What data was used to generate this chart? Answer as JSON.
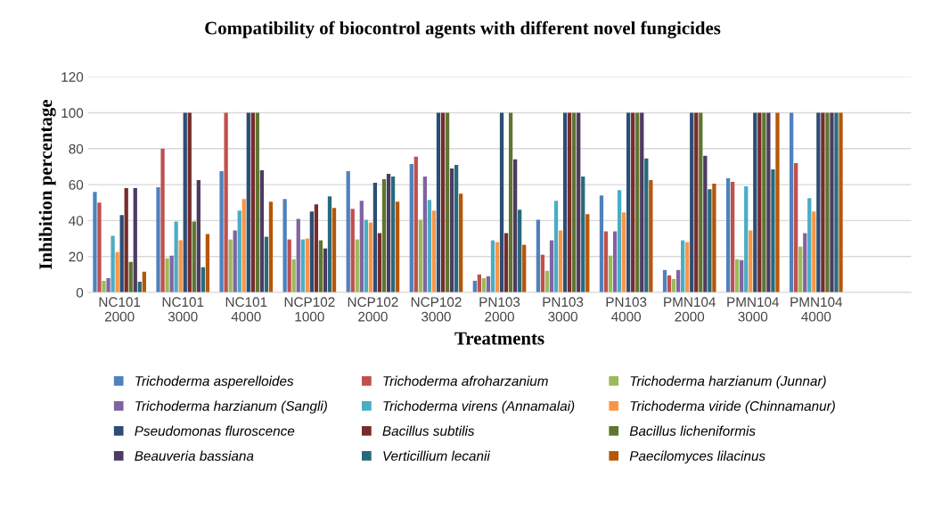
{
  "chart_data": {
    "type": "bar",
    "title": "Compatibility of biocontrol agents with different novel fungicides",
    "xlabel": "Treatments",
    "ylabel": "Inhibition percentage",
    "categories": [
      "NC101\n2000",
      "NC101\n3000",
      "NC101\n4000",
      "NCP102\n1000",
      "NCP102\n2000",
      "NCP102\n3000",
      "PN103\n2000",
      "PN103\n3000",
      "PN103\n4000",
      "PMN104\n2000",
      "PMN104\n3000",
      "PMN104\n4000",
      null
    ],
    "ylim": [
      0,
      120
    ],
    "yticks": [
      0,
      20,
      40,
      60,
      80,
      100,
      120
    ],
    "grid": "y",
    "legend": "bottom",
    "series": [
      {
        "name": "Trichoderma asperelloides",
        "color": "#4f81bd",
        "values": [
          56,
          58.5,
          67.5,
          52,
          67.5,
          71.5,
          6.5,
          40.5,
          54,
          12.5,
          63.5,
          100,
          null
        ]
      },
      {
        "name": "Trichoderma afroharzanium",
        "color": "#c0504d",
        "values": [
          50,
          80,
          100,
          29.5,
          46.5,
          75.5,
          10,
          21,
          34,
          9.5,
          61.5,
          72,
          null
        ]
      },
      {
        "name": "Trichoderma harzianum (Junnar)",
        "color": "#9bbb59",
        "values": [
          6.5,
          19,
          29.5,
          18.5,
          29.5,
          40.5,
          8,
          12,
          20.5,
          7.5,
          18.5,
          25.5,
          null
        ]
      },
      {
        "name": "Trichoderma harzianum (Sangli)",
        "color": "#8064a2",
        "values": [
          8,
          20.5,
          34.5,
          41,
          51,
          64.5,
          9,
          29,
          34,
          12.5,
          18,
          33,
          null
        ]
      },
      {
        "name": "Trichoderma virens (Annamalai)",
        "color": "#4bacc6",
        "values": [
          31.5,
          39.5,
          45.5,
          29.5,
          40.5,
          51.5,
          29,
          51,
          57,
          29,
          59,
          52.5,
          null
        ]
      },
      {
        "name": "Trichoderma viride (Chinnamanur)",
        "color": "#f79646",
        "values": [
          22.5,
          29,
          52,
          30,
          39,
          45.5,
          28,
          34.5,
          44.5,
          28,
          34.5,
          45,
          null
        ]
      },
      {
        "name": "Pseudomonas fluroscence",
        "color": "#2c4d75",
        "values": [
          43,
          100,
          100,
          45,
          61,
          100,
          100,
          100,
          100,
          100,
          100,
          100,
          null
        ]
      },
      {
        "name": "Bacillus subtilis",
        "color": "#772c2a",
        "values": [
          58,
          100,
          100,
          49,
          33,
          100,
          33,
          100,
          100,
          100,
          100,
          100,
          null
        ]
      },
      {
        "name": "Bacillus licheniformis",
        "color": "#5f7530",
        "values": [
          17,
          39.5,
          100,
          29,
          63,
          100,
          100,
          100,
          100,
          100,
          100,
          100,
          null
        ]
      },
      {
        "name": "Beauveria bassiana",
        "color": "#4d3b62",
        "values": [
          58,
          62.5,
          68,
          24.5,
          66,
          69,
          74,
          100,
          100,
          76,
          100,
          100,
          null
        ]
      },
      {
        "name": "Verticillium lecanii",
        "color": "#276a7c",
        "values": [
          6,
          14,
          31,
          53.5,
          64.5,
          71,
          46,
          64.5,
          74.5,
          57.5,
          68.5,
          100,
          null
        ]
      },
      {
        "name": "Paecilomyces lilacinus",
        "color": "#b65708",
        "values": [
          11.5,
          32.5,
          50.5,
          47,
          50.5,
          55,
          26.5,
          43.5,
          62.5,
          60.5,
          100,
          100,
          null
        ]
      }
    ]
  }
}
